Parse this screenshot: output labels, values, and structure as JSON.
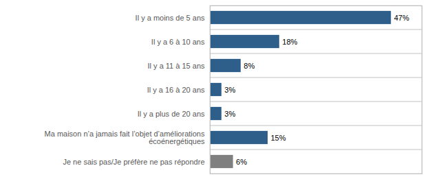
{
  "chart_data": {
    "type": "bar",
    "orientation": "horizontal",
    "categories": [
      "Je ne sais pas/Je préfère ne pas répondre",
      "Ma maison n’a jamais fait l’objet d’améliorations\nécoénergétiques",
      "Il y a plus de 20 ans",
      "Il y a 16 à 20 ans",
      "Il y a 11 à 15 ans",
      "Il y a 6 à 10 ans",
      "Il y a moins de 5 ans"
    ],
    "values": [
      6,
      15,
      3,
      3,
      8,
      18,
      47
    ],
    "value_labels": [
      "6%",
      "15%",
      "3%",
      "3%",
      "8%",
      "18%",
      "47%"
    ],
    "colors": [
      "#7f7f7f",
      "#2e5f8a",
      "#2e5f8a",
      "#2e5f8a",
      "#2e5f8a",
      "#2e5f8a",
      "#2e5f8a"
    ],
    "xlim": [
      0,
      55
    ],
    "xticks": [],
    "grid": true,
    "data_labels": true,
    "tick_labels": "y"
  }
}
